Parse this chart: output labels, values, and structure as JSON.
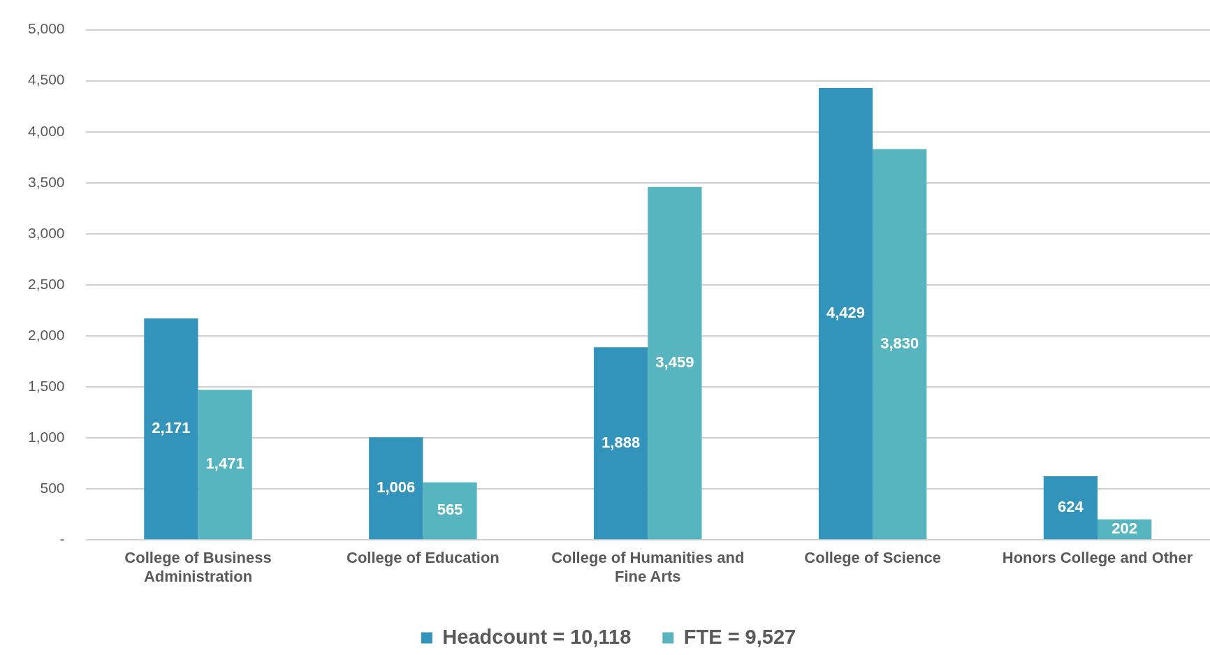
{
  "chart_data": {
    "type": "bar",
    "categories": [
      "College of Business Administration",
      "College of Education",
      "College of Humanities and Fine Arts",
      "College of Science",
      "Honors College and Other"
    ],
    "series": [
      {
        "name": "Headcount = 10,118",
        "color": "#3394bb",
        "values": [
          2171,
          1006,
          1888,
          4429,
          624
        ],
        "value_labels": [
          "2,171",
          "1,006",
          "1,888",
          "4,429",
          "624"
        ]
      },
      {
        "name": "FTE = 9,527",
        "color": "#57b5bf",
        "values": [
          1471,
          565,
          3459,
          3830,
          202
        ],
        "value_labels": [
          "1,471",
          "565",
          "3,459",
          "3,830",
          "202"
        ]
      }
    ],
    "ylim": [
      0,
      5000
    ],
    "yticks": [
      {
        "value": 0,
        "label": "-"
      },
      {
        "value": 500,
        "label": "500"
      },
      {
        "value": 1000,
        "label": "1,000"
      },
      {
        "value": 1500,
        "label": "1,500"
      },
      {
        "value": 2000,
        "label": "2,000"
      },
      {
        "value": 2500,
        "label": "2,500"
      },
      {
        "value": 3000,
        "label": "3,000"
      },
      {
        "value": 3500,
        "label": "3,500"
      },
      {
        "value": 4000,
        "label": "4,000"
      },
      {
        "value": 4500,
        "label": "4,500"
      },
      {
        "value": 5000,
        "label": "5,000"
      }
    ],
    "grid": "y",
    "legend": "bottom"
  }
}
